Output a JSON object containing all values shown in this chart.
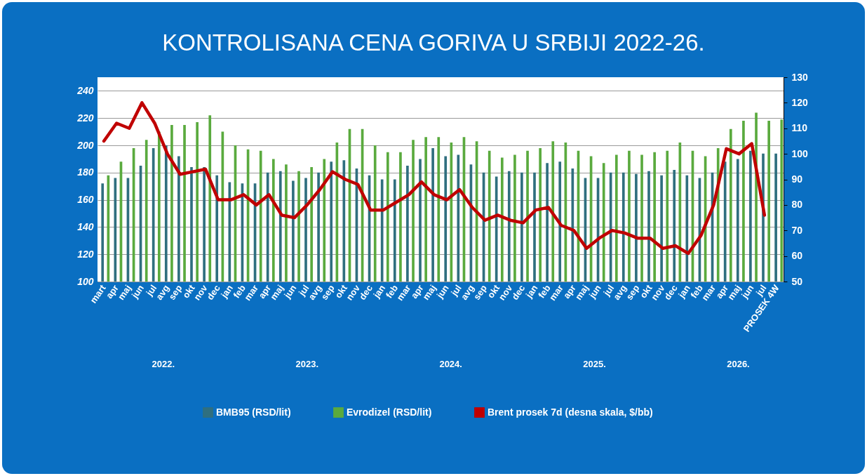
{
  "chart_data": {
    "type": "bar",
    "title": "KONTROLISANA CENA GORIVA  U SRBIJI 2022-26.",
    "categories": [
      "mart",
      "apr",
      "maj",
      "jun",
      "jul",
      "avg",
      "sep",
      "okt",
      "nov",
      "dec",
      "jan",
      "feb",
      "mar",
      "apr",
      "maj",
      "jun",
      "jul",
      "avg",
      "sep",
      "okt",
      "nov",
      "dec",
      "jan",
      "feb",
      "mar",
      "apr",
      "maj",
      "jun",
      "jul",
      "avg",
      "sep",
      "okt",
      "nov",
      "dec",
      "jan",
      "feb",
      "mar",
      "apr",
      "maj",
      "jun",
      "jul",
      "avg",
      "sep",
      "okt",
      "nov",
      "dec",
      "jan",
      "feb",
      "mar",
      "apr",
      "maj",
      "jun",
      "jul",
      "PROSEK 4W"
    ],
    "series": [
      {
        "name": "BMB95 (RSD/lit)",
        "color": "#2f6f7f",
        "values": [
          172,
          176,
          176,
          185,
          198,
          200,
          192,
          184,
          184,
          178,
          173,
          172,
          172,
          180,
          181,
          174,
          176,
          180,
          188,
          189,
          183,
          178,
          175,
          175,
          185,
          190,
          198,
          192,
          193,
          186,
          180,
          177,
          181,
          180,
          180,
          187,
          188,
          183,
          176,
          176,
          180,
          180,
          179,
          181,
          178,
          182,
          178,
          176,
          180,
          188,
          190,
          196,
          194,
          194
        ]
      },
      {
        "name": "Evrodizel (RSD/lit)",
        "color": "#5aaa3e",
        "values": [
          178,
          188,
          198,
          204,
          210,
          215,
          215,
          217,
          222,
          210,
          200,
          197,
          196,
          190,
          186,
          181,
          184,
          190,
          202,
          212,
          212,
          200,
          195,
          195,
          204,
          206,
          206,
          202,
          206,
          203,
          196,
          191,
          193,
          196,
          198,
          203,
          202,
          196,
          192,
          187,
          193,
          196,
          193,
          195,
          196,
          202,
          196,
          192,
          198,
          212,
          218,
          224,
          218,
          219
        ]
      },
      {
        "name": "Brent prosek  7d (desna skala, $/bb)",
        "type": "line",
        "axis": "y2",
        "color": "#c00000",
        "values": [
          105,
          112,
          110,
          120,
          112,
          100,
          92,
          93,
          94,
          82,
          82,
          84,
          80,
          84,
          76,
          75,
          80,
          86,
          93,
          90,
          88,
          78,
          78,
          81,
          84,
          89,
          84,
          82,
          86,
          79,
          74,
          76,
          74,
          73,
          78,
          79,
          72,
          70,
          63,
          67,
          70,
          69,
          67,
          67,
          63,
          64,
          61,
          68,
          80,
          102,
          100,
          104,
          76,
          null
        ]
      }
    ],
    "ylim": [
      100,
      250
    ],
    "yticks": [
      100,
      120,
      140,
      160,
      180,
      200,
      220,
      240
    ],
    "y2lim": [
      50,
      130
    ],
    "y2ticks": [
      50,
      60,
      70,
      80,
      90,
      100,
      110,
      120,
      130
    ],
    "grid": "y",
    "legend": "bottom",
    "line_style": "solid",
    "marker": "none",
    "annotations": [
      "2022.",
      "2023.",
      "2024.",
      "2025.",
      "2026."
    ]
  }
}
